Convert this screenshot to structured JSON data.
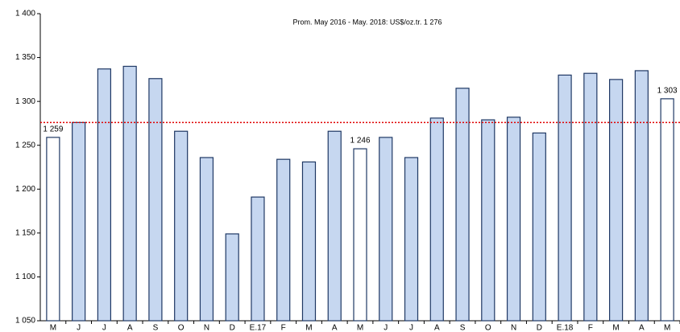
{
  "chart_data": {
    "type": "bar",
    "annotation": "Prom. May 2016 - May. 2018: US$/oz.tr. 1 276",
    "average": 1276,
    "average_color": "#e00000",
    "categories": [
      "M",
      "J",
      "J",
      "A",
      "S",
      "O",
      "N",
      "D",
      "E.17",
      "F",
      "M",
      "A",
      "M",
      "J",
      "J",
      "A",
      "S",
      "O",
      "N",
      "D",
      "E.18",
      "F",
      "M",
      "A",
      "M"
    ],
    "values": [
      1259,
      1276,
      1337,
      1340,
      1326,
      1266,
      1236,
      1149,
      1191,
      1234,
      1231,
      1266,
      1246,
      1259,
      1236,
      1281,
      1315,
      1279,
      1282,
      1264,
      1330,
      1332,
      1325,
      1335,
      1303
    ],
    "value_labels": [
      "1 259",
      null,
      null,
      null,
      null,
      null,
      null,
      null,
      null,
      null,
      null,
      null,
      "1 246",
      null,
      null,
      null,
      null,
      null,
      null,
      null,
      null,
      null,
      null,
      null,
      "1 303"
    ],
    "colors": [
      "#ffffff",
      "#c6d7f0",
      "#c6d7f0",
      "#c6d7f0",
      "#c6d7f0",
      "#c6d7f0",
      "#c6d7f0",
      "#c6d7f0",
      "#c6d7f0",
      "#c6d7f0",
      "#c6d7f0",
      "#c6d7f0",
      "#ffffff",
      "#c6d7f0",
      "#c6d7f0",
      "#c6d7f0",
      "#c6d7f0",
      "#c6d7f0",
      "#c6d7f0",
      "#c6d7f0",
      "#c6d7f0",
      "#c6d7f0",
      "#c6d7f0",
      "#c6d7f0",
      "#ffffff"
    ],
    "edge_color": "#1f3864",
    "ylim": [
      1050,
      1400
    ],
    "yticks": [
      {
        "value": 1050,
        "label": "1 050"
      },
      {
        "value": 1100,
        "label": "1 100"
      },
      {
        "value": 1150,
        "label": "1 150"
      },
      {
        "value": 1200,
        "label": "1 200"
      },
      {
        "value": 1250,
        "label": "1 250"
      },
      {
        "value": 1300,
        "label": "1 300"
      },
      {
        "value": 1350,
        "label": "1 350"
      },
      {
        "value": 1400,
        "label": "1 400"
      }
    ],
    "grid": false
  }
}
